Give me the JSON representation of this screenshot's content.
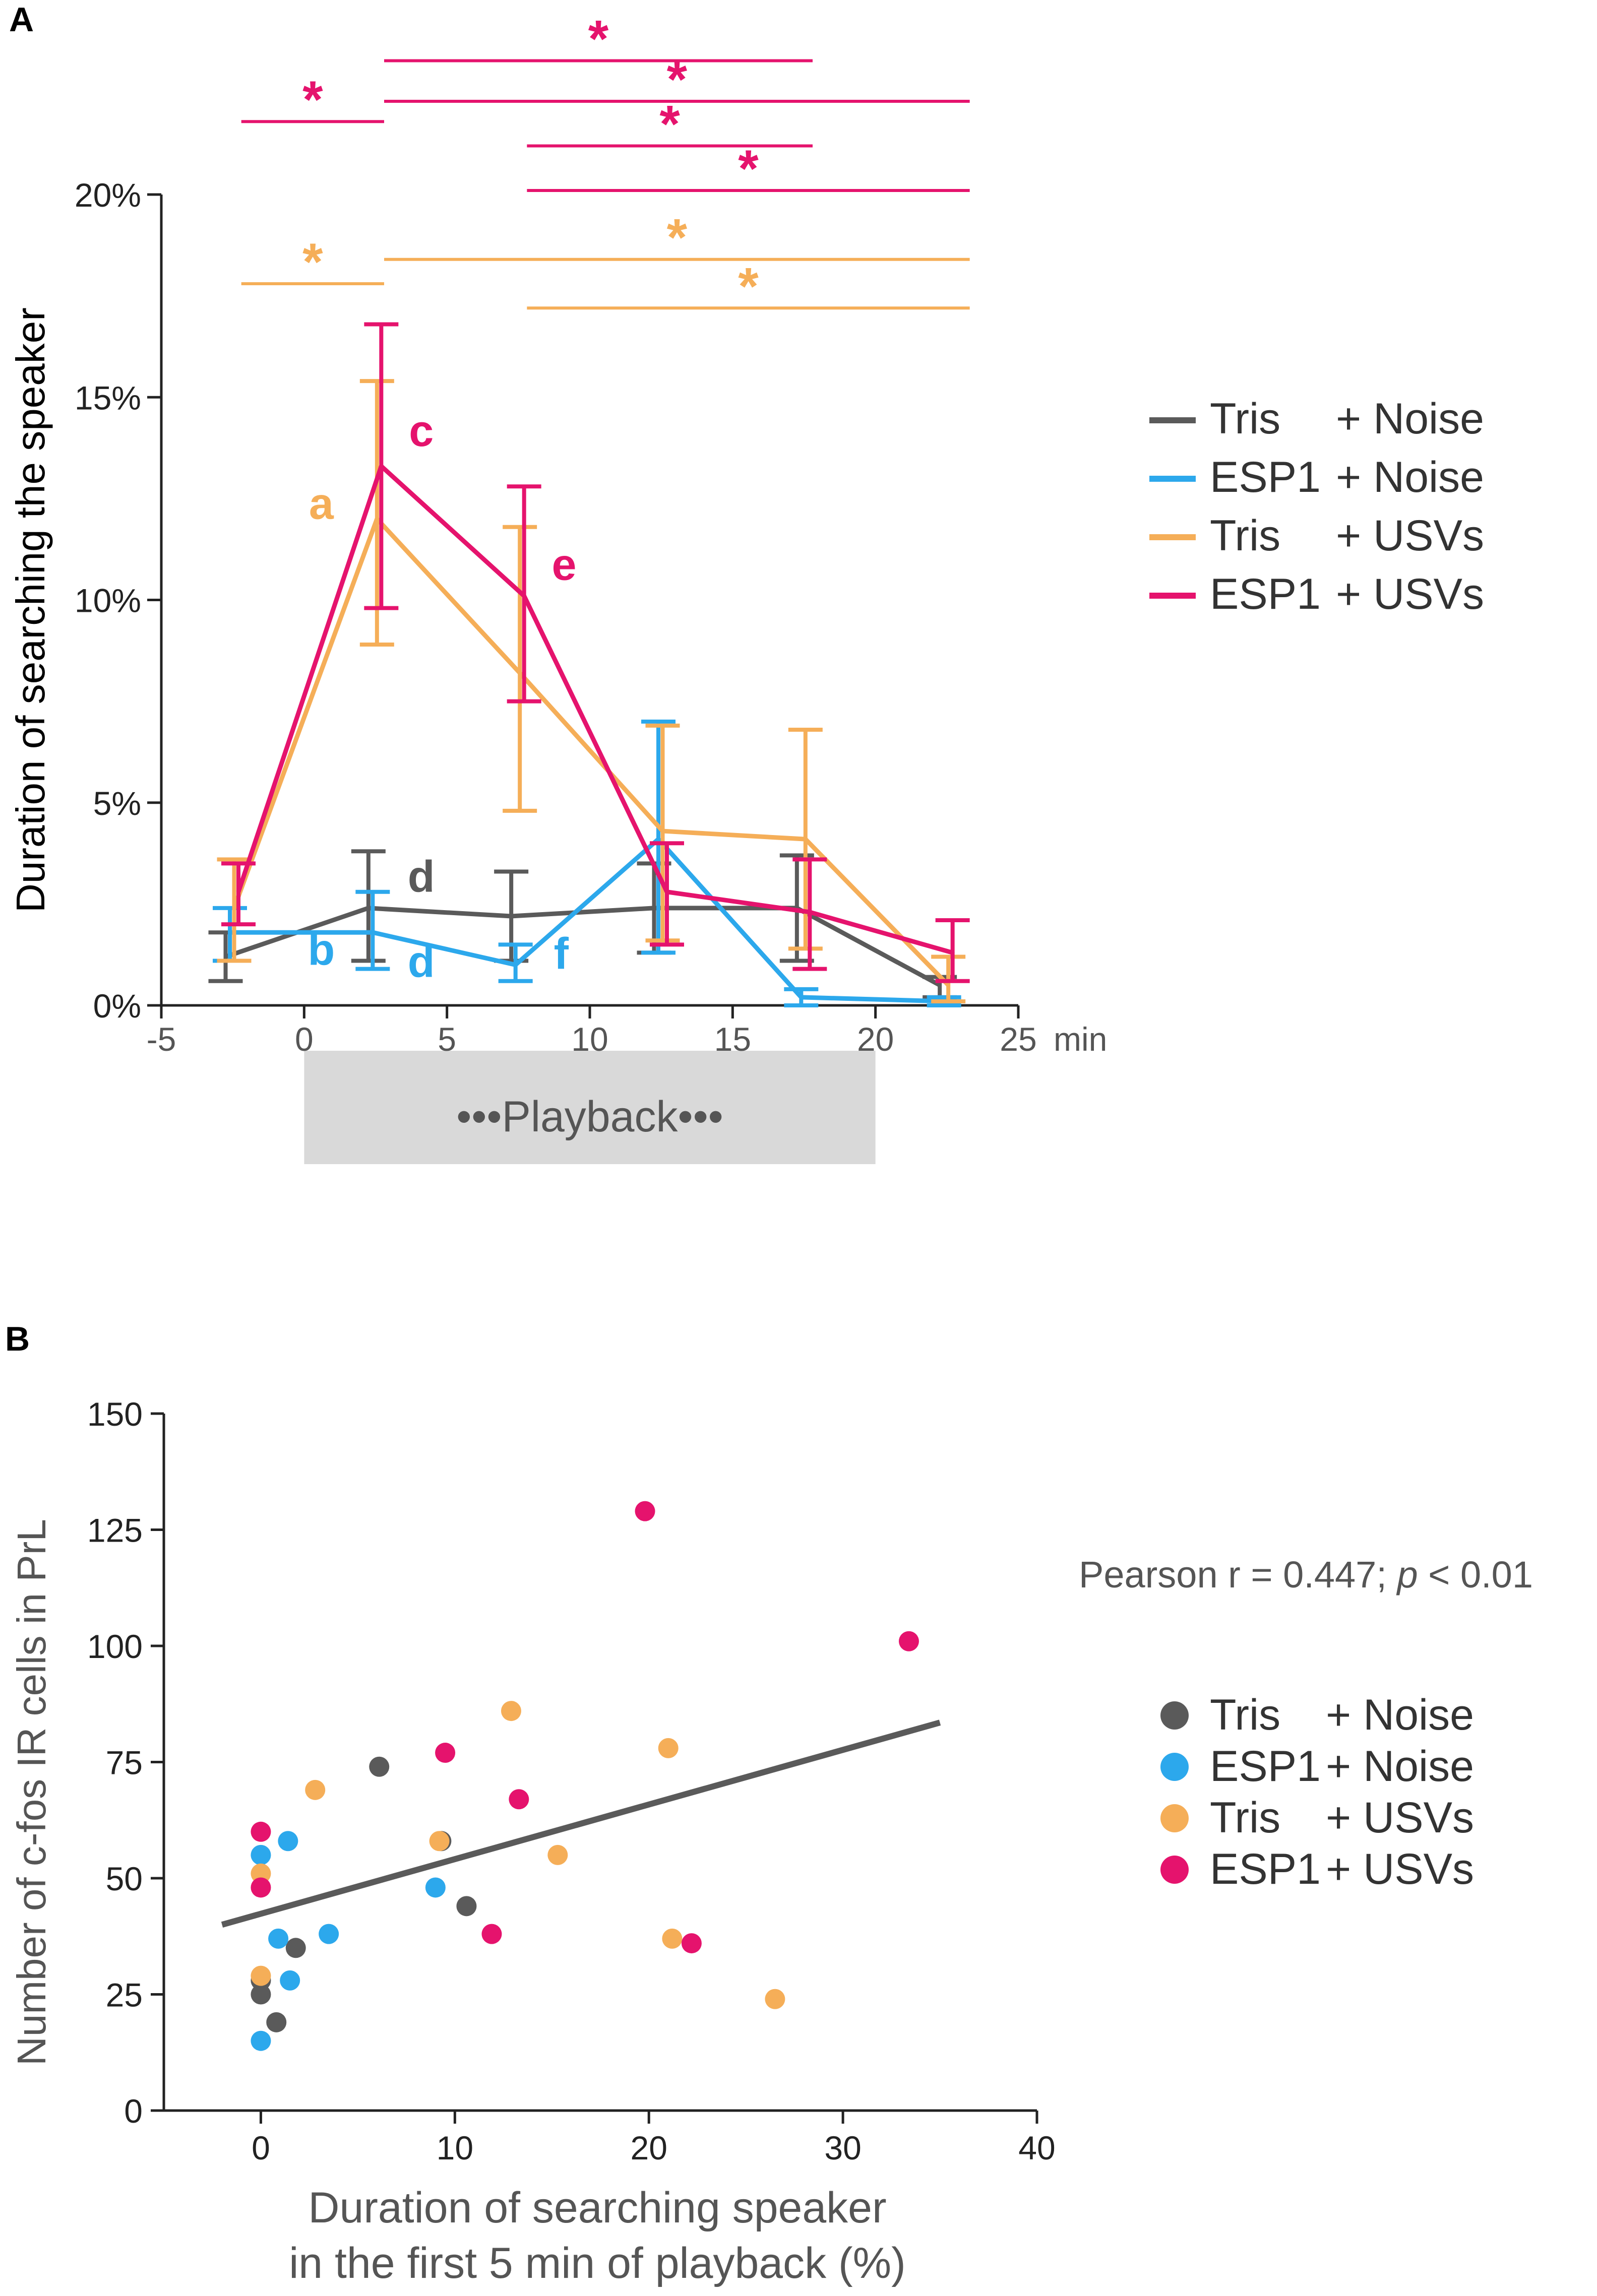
{
  "colors": {
    "grey": "#5a5a5a",
    "blue": "#2ca8ec",
    "orange": "#f5ae58",
    "magenta": "#e5136d",
    "axis": "#222222",
    "playback_box": "#d9d9d9",
    "text_grey": "#555555"
  },
  "panel_a": {
    "label": "A",
    "chart_data": {
      "type": "line",
      "title": "",
      "ylabel": "Duration of searching the speaker",
      "xlabel": "min",
      "xlim": [
        -5,
        25
      ],
      "ylim": [
        0,
        20
      ],
      "xticks": [
        -5,
        0,
        5,
        10,
        15,
        20,
        25
      ],
      "xtick_labels": [
        "-5",
        "0",
        "5",
        "10",
        "15",
        "20",
        "25"
      ],
      "yticks": [
        0,
        5,
        10,
        15,
        20
      ],
      "ytick_labels": [
        "0%",
        "5%",
        "10%",
        "15%",
        "20%"
      ],
      "x": [
        -2.5,
        2.5,
        7.5,
        12.5,
        17.5,
        22.5
      ],
      "series": [
        {
          "name": "Tris + Noise",
          "key": "grey",
          "values": [
            1.2,
            2.4,
            2.2,
            2.4,
            2.4,
            0.5
          ],
          "err_low": [
            0.6,
            1.1,
            1.1,
            1.3,
            1.1,
            0.2
          ],
          "err_high": [
            1.8,
            3.8,
            3.3,
            3.5,
            3.7,
            0.7
          ],
          "xoff": -0.25
        },
        {
          "name": "ESP1 + Noise",
          "key": "blue",
          "values": [
            1.8,
            1.8,
            1.0,
            4.1,
            0.2,
            0.1
          ],
          "err_low": [
            1.1,
            0.9,
            0.6,
            1.3,
            0.0,
            0.0
          ],
          "err_high": [
            2.4,
            2.8,
            1.5,
            7.0,
            0.4,
            0.2
          ],
          "xoff": -0.1
        },
        {
          "name": "Tris + USVs",
          "key": "orange",
          "values": [
            2.4,
            12.0,
            8.2,
            4.3,
            4.1,
            0.5
          ],
          "err_low": [
            1.1,
            8.9,
            4.8,
            1.6,
            1.4,
            0.1
          ],
          "err_high": [
            3.6,
            15.4,
            11.8,
            6.9,
            6.8,
            1.2
          ],
          "xoff": 0.05
        },
        {
          "name": "ESP1 + USVs",
          "key": "magenta",
          "values": [
            2.8,
            13.3,
            10.1,
            2.8,
            2.3,
            1.3
          ],
          "err_low": [
            2.0,
            9.8,
            7.5,
            1.5,
            0.9,
            0.6
          ],
          "err_high": [
            3.5,
            16.8,
            12.8,
            4.0,
            3.6,
            2.1
          ],
          "xoff": 0.2
        }
      ],
      "letters": [
        {
          "text": "a",
          "key": "orange",
          "x": 0.6,
          "y": 12.0
        },
        {
          "text": "b",
          "key": "blue",
          "x": 0.6,
          "y": 1.0
        },
        {
          "text": "c",
          "key": "magenta",
          "x": 4.1,
          "y": 13.8
        },
        {
          "text": "d",
          "key": "grey",
          "x": 4.1,
          "y": 2.8
        },
        {
          "text": "d",
          "key": "blue",
          "x": 4.1,
          "y": 0.7
        },
        {
          "text": "e",
          "key": "magenta",
          "x": 9.1,
          "y": 10.5
        },
        {
          "text": "f",
          "key": "blue",
          "x": 9.0,
          "y": 0.9
        }
      ],
      "significance": [
        {
          "key": "magenta",
          "x1": 2.8,
          "x2": 17.8,
          "y": 23.3,
          "label": "*"
        },
        {
          "key": "magenta",
          "x1": -2.2,
          "x2": 2.8,
          "y": 21.8,
          "label": "*"
        },
        {
          "key": "magenta",
          "x1": 2.8,
          "x2": 23.3,
          "y": 22.3,
          "label": "*"
        },
        {
          "key": "magenta",
          "x1": 7.8,
          "x2": 17.8,
          "y": 21.2,
          "label": "*"
        },
        {
          "key": "magenta",
          "x1": 7.8,
          "x2": 23.3,
          "y": 20.1,
          "label": "*"
        },
        {
          "key": "orange",
          "x1": -2.2,
          "x2": 2.8,
          "y": 17.8,
          "label": "*"
        },
        {
          "key": "orange",
          "x1": 2.8,
          "x2": 23.3,
          "y": 18.4,
          "label": "*"
        },
        {
          "key": "orange",
          "x1": 7.8,
          "x2": 23.3,
          "y": 17.2,
          "label": "*"
        }
      ],
      "playback": {
        "label": "Playback",
        "x_start": 0,
        "x_end": 20
      }
    },
    "legend": [
      {
        "key": "grey",
        "a": "Tris",
        "b": "+ Noise"
      },
      {
        "key": "blue",
        "a": "ESP1",
        "b": "+ Noise"
      },
      {
        "key": "orange",
        "a": "Tris",
        "b": "+ USVs"
      },
      {
        "key": "magenta",
        "a": "ESP1",
        "b": "+ USVs"
      }
    ]
  },
  "panel_b": {
    "label": "B",
    "chart_data": {
      "type": "scatter",
      "title": "",
      "xlabel_line1": "Duration of searching speaker",
      "xlabel_line2": "in the first 5 min of playback (%)",
      "ylabel": "Number of c-fos IR cells in PrL",
      "xlim": [
        -5,
        40
      ],
      "ylim": [
        0,
        150
      ],
      "xticks": [
        0,
        10,
        20,
        30,
        40
      ],
      "xtick_labels": [
        "0",
        "10",
        "20",
        "30",
        "40"
      ],
      "yticks": [
        0,
        25,
        50,
        75,
        100,
        125,
        150
      ],
      "ytick_labels": [
        "0",
        "25",
        "50",
        "75",
        "100",
        "125",
        "150"
      ],
      "series": [
        {
          "name": "Tris + Noise",
          "key": "grey",
          "points": [
            [
              0,
              28
            ],
            [
              0,
              25
            ],
            [
              0.8,
              19
            ],
            [
              1.8,
              35
            ],
            [
              6.1,
              74
            ],
            [
              10.6,
              44
            ],
            [
              9.3,
              58
            ]
          ]
        },
        {
          "name": "ESP1 + Noise",
          "key": "blue",
          "points": [
            [
              0,
              55
            ],
            [
              0,
              15
            ],
            [
              0.9,
              37
            ],
            [
              1.4,
              58
            ],
            [
              1.5,
              28
            ],
            [
              3.5,
              38
            ],
            [
              9.0,
              48
            ]
          ]
        },
        {
          "name": "Tris + USVs",
          "key": "orange",
          "points": [
            [
              0,
              51
            ],
            [
              0,
              29
            ],
            [
              2.8,
              69
            ],
            [
              9.2,
              58
            ],
            [
              12.9,
              86
            ],
            [
              15.3,
              55
            ],
            [
              21.0,
              78
            ],
            [
              21.2,
              37
            ],
            [
              26.5,
              24
            ]
          ]
        },
        {
          "name": "ESP1 + USVs",
          "key": "magenta",
          "points": [
            [
              0,
              60
            ],
            [
              0,
              48
            ],
            [
              9.5,
              77
            ],
            [
              11.9,
              38
            ],
            [
              13.3,
              67
            ],
            [
              19.8,
              129
            ],
            [
              22.2,
              36
            ],
            [
              33.4,
              101
            ]
          ]
        }
      ],
      "fit_line": {
        "x": [
          -2,
          35
        ],
        "y": [
          40,
          83.5
        ]
      },
      "annotation": {
        "prefix": "Pearson r = 0.447; ",
        "p": "p",
        "suffix": " < 0.01"
      }
    },
    "legend": [
      {
        "key": "grey",
        "a": "Tris",
        "b": "+ Noise"
      },
      {
        "key": "blue",
        "a": "ESP1",
        "b": "+ Noise"
      },
      {
        "key": "orange",
        "a": "Tris",
        "b": "+ USVs"
      },
      {
        "key": "magenta",
        "a": "ESP1",
        "b": "+ USVs"
      }
    ]
  }
}
